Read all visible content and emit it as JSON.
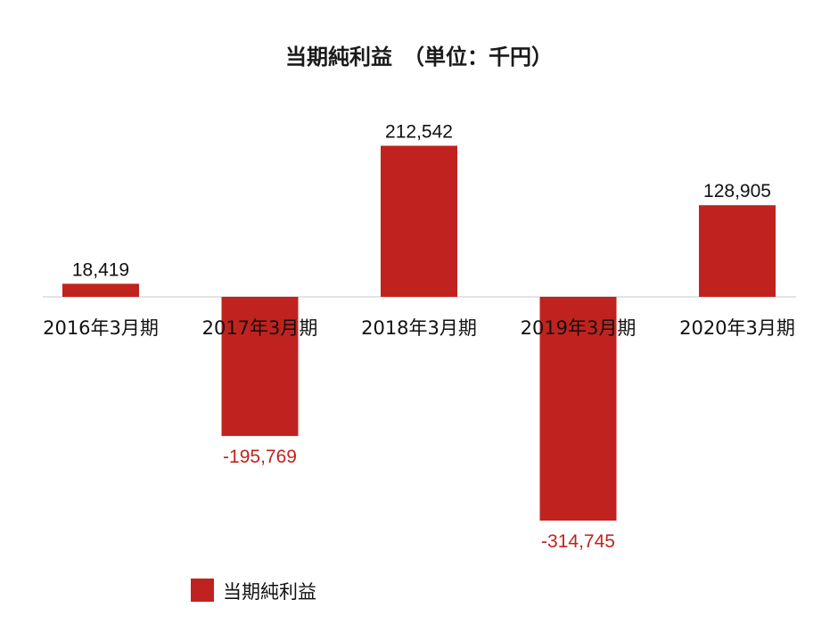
{
  "chart_data": {
    "type": "bar",
    "title": "当期純利益　（単位：千円）",
    "categories": [
      "2016年3月期",
      "2017年3月期",
      "2018年3月期",
      "2019年3月期",
      "2020年3月期"
    ],
    "series": [
      {
        "name": "当期純利益",
        "values": [
          18419,
          -195769,
          212542,
          -314745,
          128905
        ]
      }
    ],
    "data_labels": [
      "18,419",
      "-195,769",
      "212,542",
      "-314,745",
      "128,905"
    ],
    "xlabel": "",
    "ylabel": "",
    "ylim": [
      -314745,
      212542
    ],
    "grid": false,
    "legend_position": "bottom-left",
    "colors": {
      "bar": "#c0231f",
      "positive_label": "#111111",
      "negative_label": "#c0231f",
      "baseline": "#c8c8c8"
    }
  }
}
